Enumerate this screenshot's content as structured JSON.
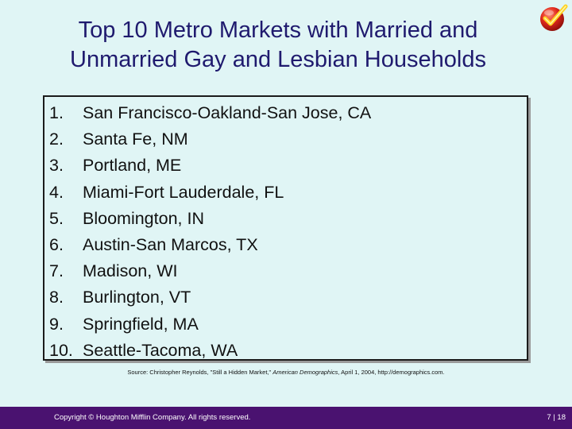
{
  "title": {
    "line1": "Top 10 Metro Markets with Married and",
    "line2": "Unmarried Gay and Lesbian Households"
  },
  "logo": {
    "icon": "checkmark-icon",
    "color": "#d4201a"
  },
  "list": [
    {
      "number": "1.",
      "text": "San Francisco-Oakland-San Jose, CA"
    },
    {
      "number": "2.",
      "text": "Santa Fe, NM"
    },
    {
      "number": "3.",
      "text": "Portland, ME"
    },
    {
      "number": "4.",
      "text": "Miami-Fort Lauderdale, FL"
    },
    {
      "number": "5.",
      "text": "Bloomington, IN"
    },
    {
      "number": "6.",
      "text": "Austin-San Marcos, TX"
    },
    {
      "number": "7.",
      "text": "Madison, WI"
    },
    {
      "number": "8.",
      "text": "Burlington, VT"
    },
    {
      "number": "9.",
      "text": "Springfield, MA"
    },
    {
      "number": "10.",
      "text": "Seattle-Tacoma, WA"
    }
  ],
  "source": {
    "prefix": "Source: Christopher Reynolds, \"Still a Hidden Market,\" ",
    "publication": "American Demographics",
    "suffix": ", April 1, 2004, http://demographics.com."
  },
  "footer": {
    "copyright": "Copyright © Houghton Mifflin Company. All rights reserved.",
    "page": "7 | 18"
  },
  "colors": {
    "background": "#e0f5f5",
    "title": "#1f1a6e",
    "footer": "#4a1270"
  }
}
